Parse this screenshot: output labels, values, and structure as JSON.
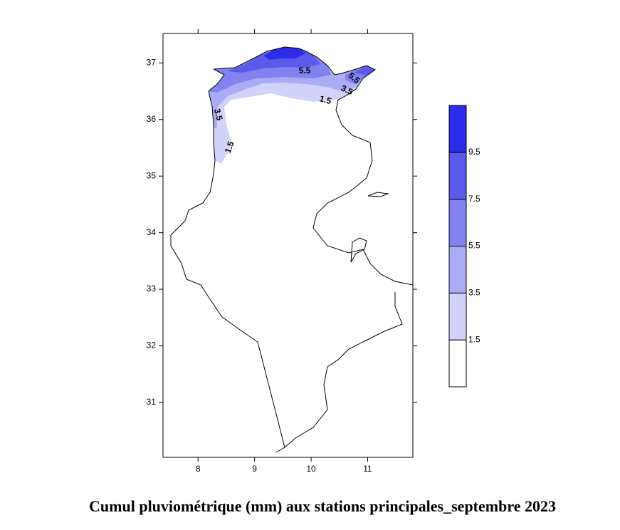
{
  "map": {
    "xlim": [
      7.38,
      11.8
    ],
    "ylim": [
      30.03,
      37.52
    ],
    "xticks": [
      8,
      9,
      10,
      11
    ],
    "yticks": [
      31,
      32,
      33,
      34,
      35,
      36,
      37
    ],
    "contour_labels": [
      5.5,
      5.5,
      3.5,
      1.5,
      3.5,
      1.5
    ]
  },
  "legend": {
    "levels": [
      1.5,
      3.5,
      5.5,
      7.5,
      9.5
    ],
    "colors": [
      "#ffffff",
      "#d2d2fb",
      "#ababf6",
      "#8282f1",
      "#5a5aed",
      "#2c2ce9"
    ]
  },
  "caption": "Cumul pluviométrique (mm) aux stations principales_septembre 2023"
}
